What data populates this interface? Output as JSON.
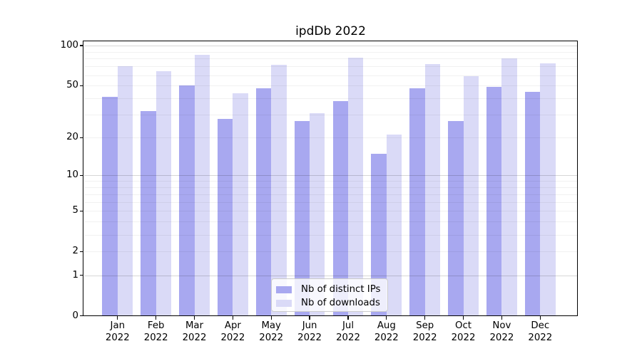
{
  "title": "ipdDb 2022",
  "colors": {
    "ips_bar": "#a8a8f0",
    "downloads_bar": "#dadaf7",
    "axis": "#000000",
    "legend_border": "#cccccc"
  },
  "y_axis": {
    "tick_labels": [
      "0",
      "1",
      "2",
      "5",
      "10",
      "20",
      "50",
      "100"
    ],
    "tick_values": [
      0,
      1,
      2,
      5,
      10,
      20,
      50,
      100
    ]
  },
  "x_axis": {
    "months": [
      "Jan",
      "Feb",
      "Mar",
      "Apr",
      "May",
      "Jun",
      "Jul",
      "Aug",
      "Sep",
      "Oct",
      "Nov",
      "Dec"
    ],
    "year": "2022"
  },
  "legend": {
    "items": [
      {
        "label": "Nb of distinct IPs",
        "series": "ips"
      },
      {
        "label": "Nb of downloads",
        "series": "downloads"
      }
    ]
  },
  "chart_data": {
    "type": "bar",
    "title": "ipdDb 2022",
    "categories": [
      "Jan 2022",
      "Feb 2022",
      "Mar 2022",
      "Apr 2022",
      "May 2022",
      "Jun 2022",
      "Jul 2022",
      "Aug 2022",
      "Sep 2022",
      "Oct 2022",
      "Nov 2022",
      "Dec 2022"
    ],
    "series": [
      {
        "name": "Nb of distinct IPs",
        "values": [
          41,
          32,
          50,
          28,
          48,
          27,
          38,
          15,
          48,
          27,
          49,
          45
        ]
      },
      {
        "name": "Nb of downloads",
        "values": [
          70,
          64,
          85,
          44,
          72,
          31,
          81,
          21,
          73,
          59,
          80,
          74
        ]
      }
    ],
    "xlabel": "",
    "ylabel": "",
    "yscale": "log1p (symlog-like: position proportional to ln(1+v))",
    "ylim": [
      0,
      100
    ],
    "ytick_labels": [
      "0",
      "1",
      "2",
      "5",
      "10",
      "20",
      "50",
      "100"
    ],
    "grid": true,
    "legend_position": "lower center"
  }
}
